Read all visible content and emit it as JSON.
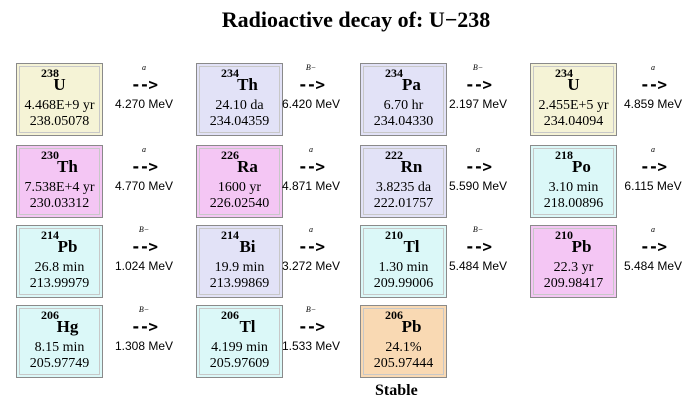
{
  "title": "Radioactive decay of: U−238",
  "colors": {
    "uranium": "#f5f3d6",
    "thorium_radium": "#f4c6f4",
    "lavender": "#e2e2f7",
    "cyan": "#dbf8f8",
    "orange": "#f9d9b3",
    "pb210": "#f4c6f4"
  },
  "nuclides": [
    {
      "mass": "238",
      "symbol": "U",
      "half_life": "4.468E+9 yr",
      "amu": "238.05078",
      "color": "uranium"
    },
    {
      "mass": "234",
      "symbol": "Th",
      "half_life": "24.10 da",
      "amu": "234.04359",
      "color": "lavender"
    },
    {
      "mass": "234",
      "symbol": "Pa",
      "half_life": "6.70 hr",
      "amu": "234.04330",
      "color": "lavender"
    },
    {
      "mass": "234",
      "symbol": "U",
      "half_life": "2.455E+5 yr",
      "amu": "234.04094",
      "color": "uranium"
    },
    {
      "mass": "230",
      "symbol": "Th",
      "half_life": "7.538E+4 yr",
      "amu": "230.03312",
      "color": "thorium_radium"
    },
    {
      "mass": "226",
      "symbol": "Ra",
      "half_life": "1600 yr",
      "amu": "226.02540",
      "color": "thorium_radium"
    },
    {
      "mass": "222",
      "symbol": "Rn",
      "half_life": "3.8235 da",
      "amu": "222.01757",
      "color": "lavender"
    },
    {
      "mass": "218",
      "symbol": "Po",
      "half_life": "3.10 min",
      "amu": "218.00896",
      "color": "cyan"
    },
    {
      "mass": "214",
      "symbol": "Pb",
      "half_life": "26.8 min",
      "amu": "213.99979",
      "color": "cyan"
    },
    {
      "mass": "214",
      "symbol": "Bi",
      "half_life": "19.9 min",
      "amu": "213.99869",
      "color": "lavender"
    },
    {
      "mass": "210",
      "symbol": "Tl",
      "half_life": "1.30 min",
      "amu": "209.99006",
      "color": "cyan"
    },
    {
      "mass": "210",
      "symbol": "Pb",
      "half_life": "22.3 yr",
      "amu": "209.98417",
      "color": "pb210"
    },
    {
      "mass": "206",
      "symbol": "Hg",
      "half_life": "8.15 min",
      "amu": "205.97749",
      "color": "cyan"
    },
    {
      "mass": "206",
      "symbol": "Tl",
      "half_life": "4.199 min",
      "amu": "205.97609",
      "color": "cyan"
    },
    {
      "mass": "206",
      "symbol": "Pb",
      "half_life": "24.1%",
      "amu": "205.97444",
      "color": "orange"
    }
  ],
  "decays": [
    {
      "mode": "a",
      "arrow": "-->",
      "energy": "4.270 MeV"
    },
    {
      "mode": "B−",
      "arrow": "-->",
      "energy": "6.420 MeV"
    },
    {
      "mode": "B−",
      "arrow": "-->",
      "energy": "2.197 MeV"
    },
    {
      "mode": "a",
      "arrow": "-->",
      "energy": "4.859 MeV"
    },
    {
      "mode": "a",
      "arrow": "-->",
      "energy": "4.770 MeV"
    },
    {
      "mode": "a",
      "arrow": "-->",
      "energy": "4.871 MeV"
    },
    {
      "mode": "a",
      "arrow": "-->",
      "energy": "5.590 MeV"
    },
    {
      "mode": "a",
      "arrow": "-->",
      "energy": "6.115 MeV"
    },
    {
      "mode": "B−",
      "arrow": "-->",
      "energy": "1.024 MeV"
    },
    {
      "mode": "a",
      "arrow": "-->",
      "energy": "3.272 MeV"
    },
    {
      "mode": "B−",
      "arrow": "-->",
      "energy": "5.484 MeV"
    },
    {
      "mode": "a",
      "arrow": "-->",
      "energy": "5.484 MeV"
    },
    {
      "mode": "B−",
      "arrow": "-->",
      "energy": "1.308 MeV"
    },
    {
      "mode": "B−",
      "arrow": "-->",
      "energy": "1.533 MeV"
    }
  ],
  "stable_label": "Stable"
}
